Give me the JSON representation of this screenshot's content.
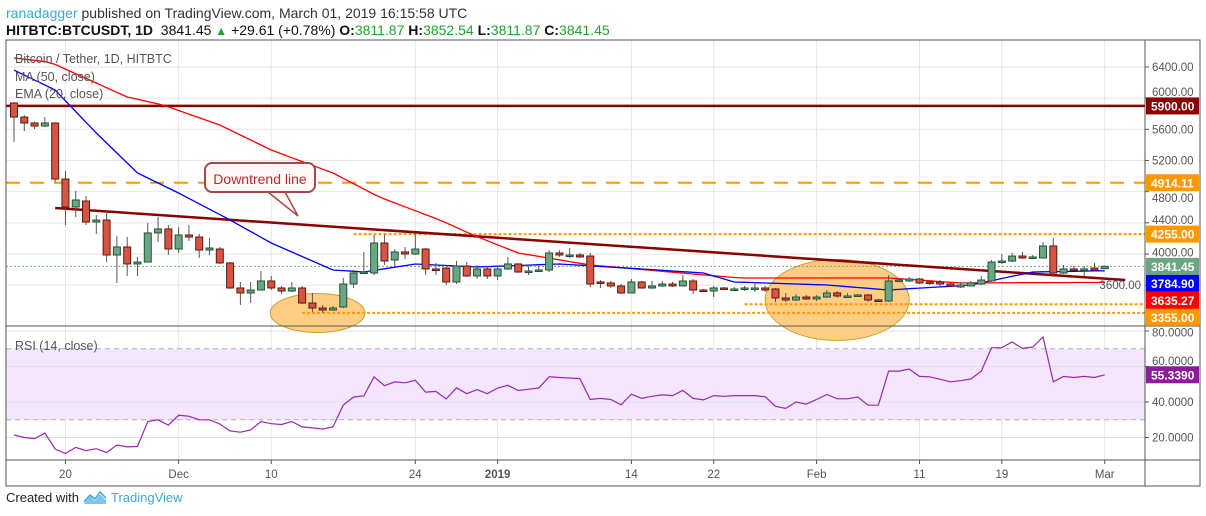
{
  "header": {
    "user": "ranadagger",
    "published": "published on TradingView.com, March 01, 2019 16:15:58 UTC",
    "symbol": "HITBTC:BTCUSDT, 1D",
    "last": "3841.45",
    "change": "+29.61 (+0.78%)",
    "o_label": "O:",
    "o": "3811.87",
    "h_label": "H:",
    "h": "3852.54",
    "l_label": "L:",
    "l": "3811.87",
    "c_label": "C:",
    "c": "3841.45"
  },
  "legend": {
    "title": "Bitcoin / Tether, 1D, HITBTC",
    "ma": "MA (50, close)",
    "ema": "EMA (20, close)",
    "rsi": "RSI (14, close)"
  },
  "annotation": {
    "callout": "Downtrend line"
  },
  "footer": {
    "created_with": "Created with",
    "brand": "TradingView"
  },
  "colors": {
    "up": "#6ba583",
    "up_border": "#225437",
    "down": "#d75442",
    "down_border": "#5b1a13",
    "ma50": "#ff0000",
    "ema20": "#0000ff",
    "rsi": "#9c27b0",
    "level_dark": "#8b0000",
    "level_orange": "#ff9800",
    "last_price": "#6ba583"
  },
  "chart_data": {
    "type": "candlestick",
    "panes": [
      "price",
      "rsi"
    ],
    "x_ticks": [
      {
        "label": "20",
        "index": 5
      },
      {
        "label": "Dec",
        "index": 16
      },
      {
        "label": "10",
        "index": 25
      },
      {
        "label": "24",
        "index": 39
      },
      {
        "label": "2019",
        "index": 47
      },
      {
        "label": "14",
        "index": 60
      },
      {
        "label": "22",
        "index": 68
      },
      {
        "label": "Feb",
        "index": 78
      },
      {
        "label": "11",
        "index": 88
      },
      {
        "label": "19",
        "index": 96
      },
      {
        "label": "Mar",
        "index": 106
      }
    ],
    "y_ticks": [
      "6400.00",
      "6000.00",
      "5600.00",
      "5200.00",
      "4800.00",
      "4400.00",
      "4000.00",
      "3600.00"
    ],
    "y_range": [
      3076,
      6746
    ],
    "rsi_ticks": [
      "80.0000",
      "60.0000",
      "40.0000",
      "20.0000"
    ],
    "rsi_range": [
      0,
      90
    ],
    "rsi_band": [
      30,
      70
    ],
    "ohlc": [
      [
        5937,
        5950,
        5437,
        5757
      ],
      [
        5757,
        5783,
        5578,
        5681
      ],
      [
        5681,
        5700,
        5604,
        5642
      ],
      [
        5642,
        5757,
        5630,
        5681
      ],
      [
        5681,
        5690,
        4924,
        4962
      ],
      [
        4962,
        5065,
        4372,
        4603
      ],
      [
        4603,
        4808,
        4475,
        4693
      ],
      [
        4680,
        4744,
        4372,
        4411
      ],
      [
        4411,
        4500,
        4257,
        4436
      ],
      [
        4436,
        4552,
        3897,
        3987
      ],
      [
        3987,
        4231,
        3628,
        4090
      ],
      [
        4090,
        4218,
        3718,
        3872
      ],
      [
        3872,
        3962,
        3718,
        3897
      ],
      [
        3897,
        4398,
        3897,
        4270
      ],
      [
        4270,
        4475,
        4154,
        4321
      ],
      [
        4321,
        4372,
        3987,
        4064
      ],
      [
        4064,
        4346,
        4013,
        4244
      ],
      [
        4244,
        4372,
        4167,
        4218
      ],
      [
        4218,
        4257,
        3949,
        4051
      ],
      [
        4051,
        4206,
        3987,
        4077
      ],
      [
        4064,
        4090,
        3872,
        3885
      ],
      [
        3885,
        3897,
        3551,
        3564
      ],
      [
        3564,
        3641,
        3346,
        3500
      ],
      [
        3500,
        3641,
        3371,
        3538
      ],
      [
        3538,
        3782,
        3538,
        3654
      ],
      [
        3654,
        3718,
        3538,
        3564
      ],
      [
        3564,
        3590,
        3487,
        3525
      ],
      [
        3525,
        3641,
        3513,
        3564
      ],
      [
        3564,
        3590,
        3359,
        3371
      ],
      [
        3371,
        3500,
        3256,
        3307
      ],
      [
        3307,
        3346,
        3243,
        3281
      ],
      [
        3281,
        3333,
        3269,
        3307
      ],
      [
        3320,
        3692,
        3307,
        3615
      ],
      [
        3615,
        3795,
        3564,
        3756
      ],
      [
        3756,
        4026,
        3744,
        3769
      ],
      [
        3756,
        4244,
        3730,
        4141
      ],
      [
        4141,
        4257,
        3859,
        3910
      ],
      [
        3923,
        4064,
        3846,
        4026
      ],
      [
        4026,
        4090,
        3936,
        4000
      ],
      [
        4000,
        4257,
        3987,
        4064
      ],
      [
        4064,
        4077,
        3730,
        3808
      ],
      [
        3808,
        3885,
        3730,
        3795
      ],
      [
        3820,
        3833,
        3602,
        3641
      ],
      [
        3641,
        3910,
        3615,
        3846
      ],
      [
        3846,
        3897,
        3705,
        3718
      ],
      [
        3718,
        3859,
        3679,
        3808
      ],
      [
        3808,
        3846,
        3679,
        3718
      ],
      [
        3718,
        3846,
        3666,
        3808
      ],
      [
        3808,
        3962,
        3795,
        3872
      ],
      [
        3872,
        3885,
        3756,
        3769
      ],
      [
        3782,
        3846,
        3730,
        3782
      ],
      [
        3782,
        3846,
        3769,
        3795
      ],
      [
        3795,
        4051,
        3769,
        4013
      ],
      [
        4013,
        4051,
        3962,
        3987
      ],
      [
        3987,
        4077,
        3949,
        3987
      ],
      [
        3987,
        4013,
        3949,
        3962
      ],
      [
        3974,
        4013,
        3577,
        3615
      ],
      [
        3641,
        3666,
        3564,
        3628
      ],
      [
        3628,
        3654,
        3564,
        3590
      ],
      [
        3590,
        3615,
        3487,
        3500
      ],
      [
        3500,
        3679,
        3500,
        3641
      ],
      [
        3641,
        3654,
        3551,
        3564
      ],
      [
        3564,
        3654,
        3551,
        3590
      ],
      [
        3590,
        3654,
        3577,
        3615
      ],
      [
        3615,
        3641,
        3577,
        3590
      ],
      [
        3590,
        3730,
        3590,
        3654
      ],
      [
        3654,
        3679,
        3487,
        3538
      ],
      [
        3538,
        3551,
        3513,
        3525
      ],
      [
        3525,
        3590,
        3448,
        3564
      ],
      [
        3564,
        3577,
        3538,
        3551
      ],
      [
        3551,
        3577,
        3525,
        3551
      ],
      [
        3564,
        3590,
        3525,
        3564
      ],
      [
        3564,
        3641,
        3513,
        3564
      ],
      [
        3564,
        3590,
        3513,
        3538
      ],
      [
        3551,
        3564,
        3384,
        3436
      ],
      [
        3436,
        3500,
        3384,
        3410
      ],
      [
        3410,
        3487,
        3397,
        3448
      ],
      [
        3448,
        3474,
        3410,
        3423
      ],
      [
        3423,
        3474,
        3397,
        3448
      ],
      [
        3448,
        3538,
        3436,
        3500
      ],
      [
        3500,
        3525,
        3436,
        3461
      ],
      [
        3461,
        3500,
        3436,
        3461
      ],
      [
        3468,
        3487,
        3461,
        3474
      ],
      [
        3474,
        3487,
        3384,
        3410
      ],
      [
        3410,
        3423,
        3384,
        3397
      ],
      [
        3397,
        3730,
        3384,
        3654
      ],
      [
        3654,
        3679,
        3641,
        3666
      ],
      [
        3654,
        3705,
        3641,
        3679
      ],
      [
        3679,
        3692,
        3615,
        3628
      ],
      [
        3641,
        3654,
        3602,
        3628
      ],
      [
        3641,
        3666,
        3590,
        3615
      ],
      [
        3615,
        3628,
        3577,
        3590
      ],
      [
        3577,
        3641,
        3564,
        3602
      ],
      [
        3590,
        3654,
        3590,
        3628
      ],
      [
        3615,
        3718,
        3602,
        3666
      ],
      [
        3654,
        3923,
        3641,
        3897
      ],
      [
        3897,
        4000,
        3872,
        3910
      ],
      [
        3910,
        4013,
        3897,
        3974
      ],
      [
        3974,
        4026,
        3936,
        3949
      ],
      [
        3949,
        3987,
        3936,
        3962
      ],
      [
        3949,
        4154,
        3949,
        4103
      ],
      [
        4103,
        4206,
        3705,
        3756
      ],
      [
        3756,
        3859,
        3744,
        3808
      ],
      [
        3808,
        3846,
        3782,
        3805
      ],
      [
        3808,
        3846,
        3718,
        3808
      ],
      [
        3820,
        3885,
        3782,
        3795
      ],
      [
        3811.87,
        3852.54,
        3811.87,
        3841.45
      ]
    ],
    "ma50": [
      [
        0,
        6515
      ],
      [
        3.5,
        6463
      ],
      [
        11,
        6014
      ],
      [
        14.5,
        5912
      ],
      [
        20,
        5655
      ],
      [
        25,
        5334
      ],
      [
        31,
        5039
      ],
      [
        35.5,
        4731
      ],
      [
        41.4,
        4436
      ],
      [
        44.6,
        4244
      ],
      [
        49,
        4013
      ],
      [
        56,
        3859
      ],
      [
        70.5,
        3692
      ],
      [
        85,
        3692
      ],
      [
        92,
        3628
      ],
      [
        106,
        3635.27
      ]
    ],
    "ema20": [
      [
        0,
        6360
      ],
      [
        4,
        6104
      ],
      [
        8,
        5552
      ],
      [
        12,
        5039
      ],
      [
        16,
        4783
      ],
      [
        21,
        4436
      ],
      [
        25,
        4141
      ],
      [
        31,
        3795
      ],
      [
        34,
        3769
      ],
      [
        39,
        3872
      ],
      [
        45,
        3833
      ],
      [
        53,
        3872
      ],
      [
        61,
        3808
      ],
      [
        67,
        3756
      ],
      [
        70,
        3641
      ],
      [
        79,
        3602
      ],
      [
        85,
        3538
      ],
      [
        93,
        3602
      ],
      [
        99,
        3769
      ],
      [
        106,
        3784.9
      ]
    ],
    "rsi": [
      21.4,
      20,
      19.4,
      22.5,
      13.5,
      11,
      14.4,
      12.6,
      13.7,
      11.5,
      15.8,
      14.7,
      15,
      29,
      30,
      27,
      32.5,
      32,
      30,
      30,
      27.6,
      23.7,
      23,
      24.2,
      29,
      27.8,
      27.3,
      29,
      26,
      25.4,
      24.8,
      26,
      38.3,
      42.8,
      43.5,
      54.2,
      49.2,
      51.3,
      50.8,
      52.2,
      45.6,
      46,
      41.7,
      48,
      44.7,
      47,
      44.7,
      47.9,
      49.4,
      46.5,
      47.2,
      47.9,
      54.2,
      53.8,
      53.5,
      53.2,
      41.4,
      42,
      41.4,
      38.4,
      44.4,
      42,
      43.2,
      44,
      43.6,
      46.6,
      42,
      41.2,
      43.6,
      43.2,
      43.6,
      43.6,
      43.6,
      43,
      37.6,
      36.4,
      40,
      38.8,
      41.4,
      44.2,
      41.8,
      41.8,
      42.8,
      38.2,
      38.2,
      57.4,
      57.4,
      58.6,
      54.4,
      54.2,
      52.8,
      51.4,
      52,
      53,
      57.4,
      70.6,
      70.6,
      73.8,
      70.2,
      71,
      76.6,
      51.4,
      54.4,
      53.8,
      54.4,
      53.8,
      55.339
    ],
    "levels": [
      {
        "label": "5900.00",
        "value": 5900,
        "style": "solid",
        "color": "#8b0000"
      },
      {
        "label": "4914.11",
        "value": 4914.11,
        "style": "dashed",
        "color": "#ff9800"
      },
      {
        "label": "4255.00",
        "value": 4255,
        "style": "dotted",
        "color": "#ff9800",
        "from_index": 33
      },
      {
        "label": "3355.00",
        "value": 3355,
        "style": "dotted",
        "color": "#ff9800",
        "from_index": 71
      },
      {
        "label": "",
        "value": 3245,
        "style": "dotted",
        "color": "#ff9800",
        "from_index": 28
      }
    ],
    "value_labels": [
      {
        "label": "3841.45",
        "value": 3841.45,
        "color": "#6ba583"
      },
      {
        "label": "3784.90",
        "value": 3784.9,
        "color": "#0000ff"
      },
      {
        "label": "3635.27",
        "value": 3635.27,
        "color": "#ff0000"
      }
    ],
    "rsi_value_label": {
      "label": "55.3390",
      "value": 55.339,
      "color": "#8e1a9c"
    },
    "trendline": {
      "from": [
        4,
        4590
      ],
      "to": [
        108,
        3666
      ],
      "color": "#8b0000"
    },
    "highlights": [
      {
        "center": [
          29.5,
          3243
        ],
        "spread": [
          4.6,
          250
        ]
      },
      {
        "center": [
          80,
          3410
        ],
        "spread": [
          7,
          520
        ]
      }
    ]
  }
}
